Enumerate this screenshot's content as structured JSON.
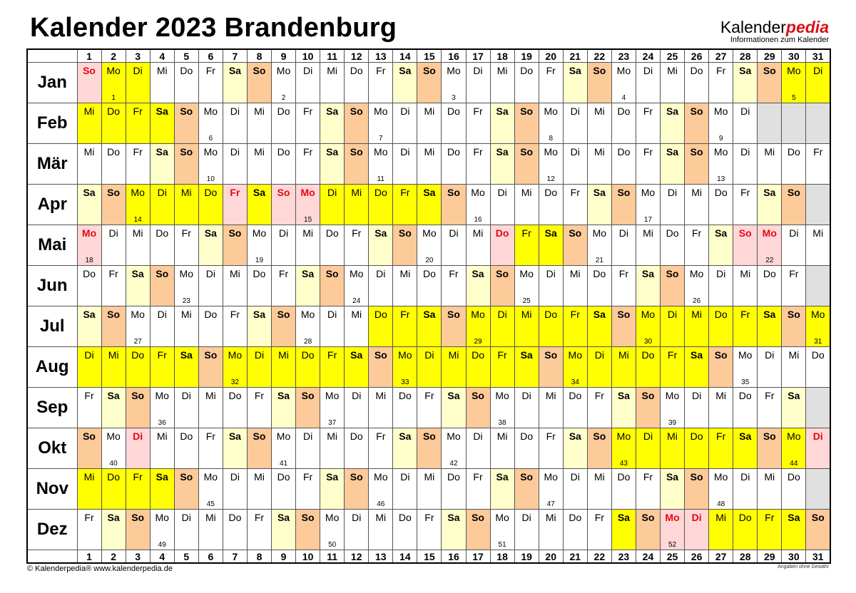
{
  "title": "Kalender 2023 Brandenburg",
  "logo": {
    "brand_main": "Kalender",
    "brand_accent": "pedia",
    "tagline": "Informationen zum Kalender"
  },
  "footer": {
    "copyright": "© Kalenderpedia®   www.kalenderpedia.de",
    "disclaimer": "Angaben ohne Gewähr"
  },
  "colors": {
    "saturday": "#ffffcc",
    "sunday": "#fdca9a",
    "school_holiday": "#ffff00",
    "public_holiday": "#ffd7d7",
    "holiday_text": "#e30613",
    "no_day": "#e0e0e0"
  },
  "weekdays": [
    "So",
    "Mo",
    "Di",
    "Mi",
    "Do",
    "Fr",
    "Sa"
  ],
  "day_numbers": [
    1,
    2,
    3,
    4,
    5,
    6,
    7,
    8,
    9,
    10,
    11,
    12,
    13,
    14,
    15,
    16,
    17,
    18,
    19,
    20,
    21,
    22,
    23,
    24,
    25,
    26,
    27,
    28,
    29,
    30,
    31
  ],
  "months": [
    {
      "name": "Jan",
      "first_weekday": "So",
      "days": 31,
      "weeks": [
        1,
        2,
        3,
        4,
        5
      ],
      "holidays": [
        1
      ],
      "school": [
        [
          2,
          3
        ],
        [
          30,
          31
        ]
      ]
    },
    {
      "name": "Feb",
      "first_weekday": "Mi",
      "days": 28,
      "weeks": [
        6,
        7,
        8,
        9
      ],
      "holidays": [],
      "school": [
        [
          1,
          4
        ]
      ]
    },
    {
      "name": "Mär",
      "first_weekday": "Mi",
      "days": 31,
      "weeks": [
        10,
        11,
        12,
        13
      ],
      "holidays": [],
      "school": []
    },
    {
      "name": "Apr",
      "first_weekday": "Sa",
      "days": 30,
      "weeks": [
        14,
        15,
        16,
        17
      ],
      "holidays": [
        7,
        9,
        10
      ],
      "school": [
        [
          3,
          15
        ]
      ]
    },
    {
      "name": "Mai",
      "first_weekday": "Mo",
      "days": 31,
      "weeks": [
        18,
        19,
        20,
        21,
        22
      ],
      "holidays": [
        1,
        18,
        28,
        29
      ],
      "school": [
        [
          19,
          20
        ]
      ]
    },
    {
      "name": "Jun",
      "first_weekday": "Do",
      "days": 30,
      "weeks": [
        23,
        24,
        25,
        26
      ],
      "holidays": [],
      "school": []
    },
    {
      "name": "Jul",
      "first_weekday": "Sa",
      "days": 31,
      "weeks": [
        27,
        28,
        29,
        30,
        31
      ],
      "holidays": [],
      "school": [
        [
          13,
          31
        ]
      ]
    },
    {
      "name": "Aug",
      "first_weekday": "Di",
      "days": 31,
      "weeks": [
        32,
        33,
        34,
        35
      ],
      "holidays": [],
      "school": [
        [
          1,
          26
        ]
      ]
    },
    {
      "name": "Sep",
      "first_weekday": "Fr",
      "days": 30,
      "weeks": [
        36,
        37,
        38,
        39
      ],
      "holidays": [],
      "school": []
    },
    {
      "name": "Okt",
      "first_weekday": "So",
      "days": 31,
      "weeks": [
        40,
        41,
        42,
        43,
        44
      ],
      "holidays": [
        3,
        31
      ],
      "school": [
        [
          23,
          30
        ]
      ]
    },
    {
      "name": "Nov",
      "first_weekday": "Mi",
      "days": 30,
      "weeks": [
        45,
        46,
        47,
        48
      ],
      "holidays": [],
      "school": [
        [
          1,
          4
        ]
      ]
    },
    {
      "name": "Dez",
      "first_weekday": "Fr",
      "days": 31,
      "weeks": [
        49,
        50,
        51,
        52
      ],
      "holidays": [
        25,
        26
      ],
      "school": [
        [
          23,
          30
        ]
      ]
    }
  ]
}
